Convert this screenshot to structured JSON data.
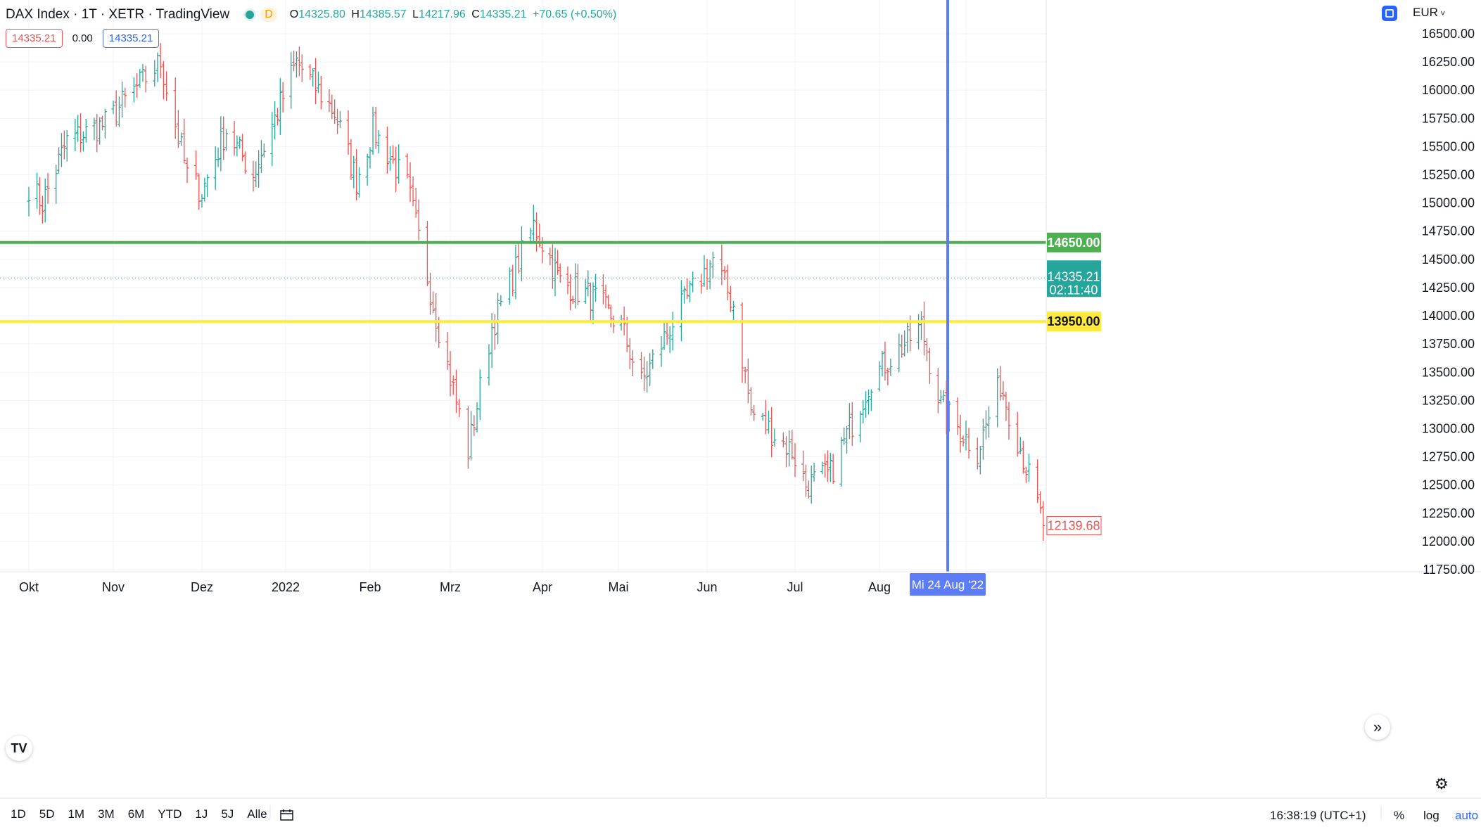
{
  "header": {
    "title": "DAX Index · 1T · XETR · TradingView",
    "interval_tag": "D",
    "open_label": "O",
    "open": "14325.80",
    "high_label": "H",
    "high": "14385.57",
    "low_label": "L",
    "low": "14217.96",
    "close_label": "C",
    "close": "14335.21",
    "change": "+70.65 (+0.50%)"
  },
  "order_boxes": {
    "sell": "14335.21",
    "spread": "0.00",
    "buy": "14335.21"
  },
  "currency": "EUR",
  "bottom_bar": {
    "ranges": [
      "1D",
      "5D",
      "1M",
      "3M",
      "6M",
      "YTD",
      "1J",
      "5J",
      "Alle"
    ],
    "clock": "16:38:19 (UTC+1)",
    "percent": "%",
    "log": "log",
    "auto": "auto"
  },
  "colors": {
    "up": "#26a69a",
    "down": "#ef5350",
    "green_line": "#4caf50",
    "yellow_line": "#ffeb3b",
    "crosshair": "#5c7cfa"
  },
  "chart_data": {
    "type": "ohlc-bar",
    "title": "DAX Index · 1T · XETR · TradingView",
    "y_ticks": [
      16500,
      16250,
      16000,
      15750,
      15500,
      15250,
      15000,
      14750,
      14500,
      14250,
      14000,
      13750,
      13500,
      13250,
      13000,
      12750,
      12500,
      12250,
      12000,
      11750
    ],
    "x_ticks": [
      "Okt",
      "Nov",
      "Dez",
      "2022",
      "Feb",
      "Mrz",
      "Apr",
      "Mai",
      "Jun",
      "Jul",
      "Aug",
      "Mi 24 Aug '22"
    ],
    "ylim": [
      11720,
      16600
    ],
    "horizontal_lines": [
      {
        "value": 14650.0,
        "label": "14650.00",
        "color": "#4caf50"
      },
      {
        "value": 13950.0,
        "label": "13950.00",
        "color": "#ffeb3b"
      }
    ],
    "last_price": {
      "value": 14335.21,
      "label": "14335.21",
      "countdown": "02:11:40"
    },
    "last_visible_close": {
      "value": 12139.68,
      "label": "12139.68"
    },
    "crosshair_date": "Mi 24 Aug '22",
    "approx_close_path": [
      {
        "date": "2021-10-01",
        "close": 15150
      },
      {
        "date": "2021-10-06",
        "close": 15000
      },
      {
        "date": "2021-10-15",
        "close": 15550
      },
      {
        "date": "2021-10-29",
        "close": 15700
      },
      {
        "date": "2021-11-10",
        "close": 16050
      },
      {
        "date": "2021-11-17",
        "close": 16250
      },
      {
        "date": "2021-11-26",
        "close": 15250
      },
      {
        "date": "2021-12-01",
        "close": 15100
      },
      {
        "date": "2021-12-10",
        "close": 15650
      },
      {
        "date": "2021-12-20",
        "close": 15250
      },
      {
        "date": "2022-01-05",
        "close": 16250
      },
      {
        "date": "2022-01-19",
        "close": 15800
      },
      {
        "date": "2022-01-27",
        "close": 15200
      },
      {
        "date": "2022-02-02",
        "close": 15650
      },
      {
        "date": "2022-02-14",
        "close": 15150
      },
      {
        "date": "2022-02-24",
        "close": 14000
      },
      {
        "date": "2022-03-07",
        "close": 12800
      },
      {
        "date": "2022-03-15",
        "close": 13900
      },
      {
        "date": "2022-03-29",
        "close": 14800
      },
      {
        "date": "2022-04-08",
        "close": 14300
      },
      {
        "date": "2022-04-22",
        "close": 14150
      },
      {
        "date": "2022-05-02",
        "close": 13900
      },
      {
        "date": "2022-05-09",
        "close": 13400
      },
      {
        "date": "2022-05-20",
        "close": 13950
      },
      {
        "date": "2022-06-03",
        "close": 14500
      },
      {
        "date": "2022-06-10",
        "close": 14100
      },
      {
        "date": "2022-06-16",
        "close": 13150
      },
      {
        "date": "2022-06-30",
        "close": 12800
      },
      {
        "date": "2022-07-05",
        "close": 12500
      },
      {
        "date": "2022-07-14",
        "close": 12600
      },
      {
        "date": "2022-07-29",
        "close": 13450
      },
      {
        "date": "2022-08-16",
        "close": 13900
      },
      {
        "date": "2022-08-23",
        "close": 13200
      },
      {
        "date": "2022-09-05",
        "close": 12800
      },
      {
        "date": "2022-09-13",
        "close": 13400
      },
      {
        "date": "2022-09-21",
        "close": 12750
      },
      {
        "date": "2022-09-28",
        "close": 12139.68
      }
    ]
  }
}
